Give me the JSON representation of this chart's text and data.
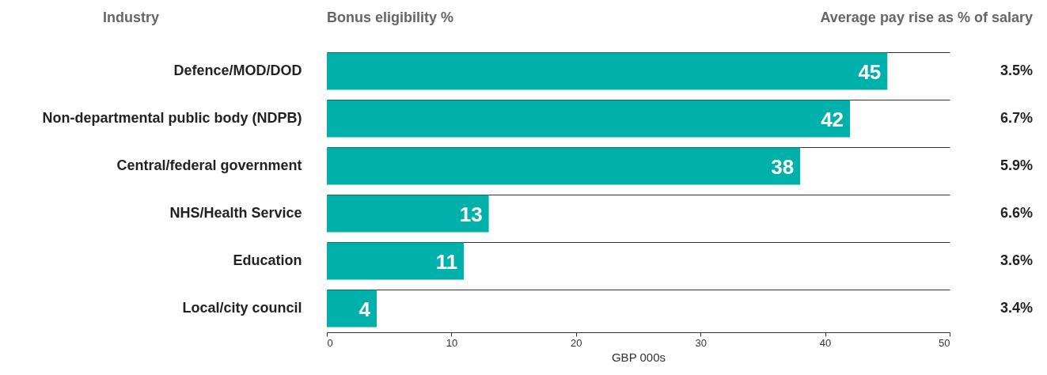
{
  "chart_data": {
    "type": "bar",
    "orientation": "horizontal",
    "title": "Bonus eligibility %",
    "ylabel": "Industry",
    "xlabel": "GBP 000s",
    "categories": [
      "Defence/MOD/DOD",
      "Non-departmental public body (NDPB)",
      "Central/federal government",
      "NHS/Health Service",
      "Education",
      "Local/city council"
    ],
    "values": [
      45,
      42,
      38,
      13,
      11,
      4
    ],
    "color": "#00b0aa",
    "data_labels": true,
    "xlim": [
      0,
      50
    ],
    "xticks": [
      0,
      10,
      20,
      30,
      40,
      50
    ],
    "grid": "y",
    "annotations": [
      "Average pay rise as % of salary",
      "3.5%",
      "6.7%",
      "5.9%",
      "6.6%",
      "3.6%",
      "3.4%"
    ]
  }
}
